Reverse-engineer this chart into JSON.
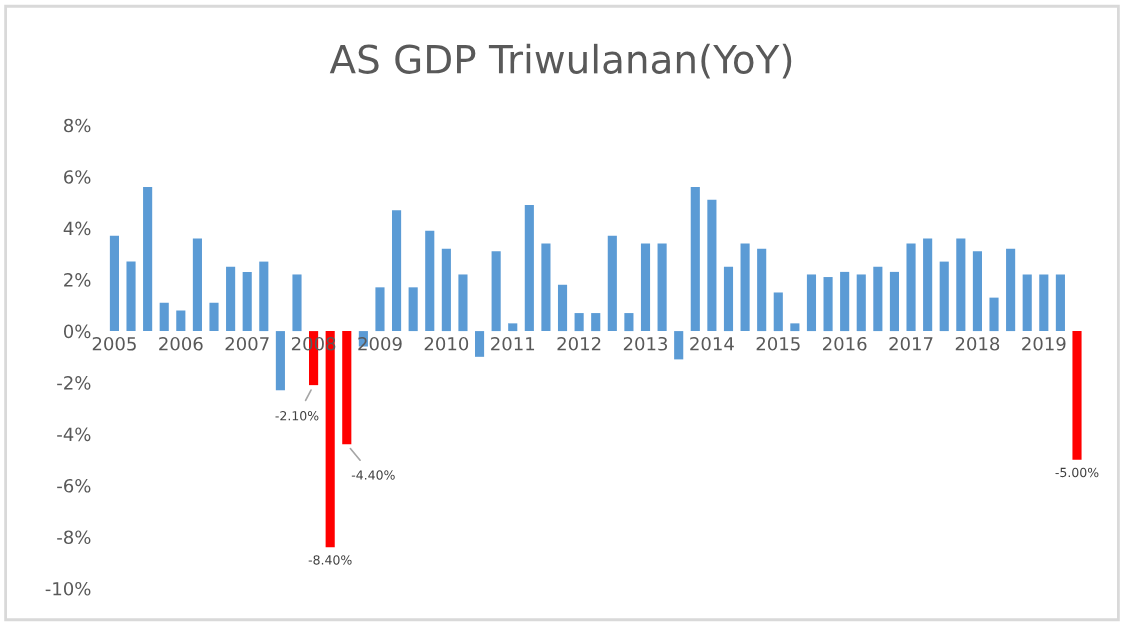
{
  "chart_data": {
    "type": "bar",
    "title": "AS GDP Triwulanan(YoY)",
    "categories": [
      "2005",
      null,
      null,
      null,
      "2006",
      null,
      null,
      null,
      "2007",
      null,
      null,
      null,
      "2008",
      null,
      null,
      null,
      "2009",
      null,
      null,
      null,
      "2010",
      null,
      null,
      null,
      "2011",
      null,
      null,
      null,
      "2012",
      null,
      null,
      null,
      "2013",
      null,
      null,
      null,
      "2014",
      null,
      null,
      null,
      "2015",
      null,
      null,
      null,
      "2016",
      null,
      null,
      null,
      "2017",
      null,
      null,
      null,
      "2018",
      null,
      null,
      null,
      "2019",
      null,
      null
    ],
    "values": [
      3.7,
      2.7,
      5.6,
      1.1,
      0.8,
      3.6,
      1.1,
      2.5,
      2.3,
      2.7,
      -2.3,
      2.2,
      -2.1,
      -8.4,
      -4.4,
      -0.6,
      1.7,
      4.7,
      1.7,
      3.9,
      3.2,
      2.2,
      -1.0,
      3.1,
      0.3,
      4.9,
      3.4,
      1.8,
      0.7,
      0.7,
      3.7,
      0.7,
      3.4,
      3.4,
      -1.1,
      5.6,
      5.1,
      2.5,
      3.4,
      3.2,
      1.5,
      0.3,
      2.2,
      2.1,
      2.3,
      2.2,
      2.5,
      2.3,
      3.4,
      3.6,
      2.7,
      3.6,
      3.1,
      1.3,
      3.2,
      2.2,
      2.2,
      2.2,
      -5.0
    ],
    "colors": [
      "#5b9bd5",
      "#5b9bd5",
      "#5b9bd5",
      "#5b9bd5",
      "#5b9bd5",
      "#5b9bd5",
      "#5b9bd5",
      "#5b9bd5",
      "#5b9bd5",
      "#5b9bd5",
      "#5b9bd5",
      "#5b9bd5",
      "#ff0000",
      "#ff0000",
      "#ff0000",
      "#5b9bd5",
      "#5b9bd5",
      "#5b9bd5",
      "#5b9bd5",
      "#5b9bd5",
      "#5b9bd5",
      "#5b9bd5",
      "#5b9bd5",
      "#5b9bd5",
      "#5b9bd5",
      "#5b9bd5",
      "#5b9bd5",
      "#5b9bd5",
      "#5b9bd5",
      "#5b9bd5",
      "#5b9bd5",
      "#5b9bd5",
      "#5b9bd5",
      "#5b9bd5",
      "#5b9bd5",
      "#5b9bd5",
      "#5b9bd5",
      "#5b9bd5",
      "#5b9bd5",
      "#5b9bd5",
      "#5b9bd5",
      "#5b9bd5",
      "#5b9bd5",
      "#5b9bd5",
      "#5b9bd5",
      "#5b9bd5",
      "#5b9bd5",
      "#5b9bd5",
      "#5b9bd5",
      "#5b9bd5",
      "#5b9bd5",
      "#5b9bd5",
      "#5b9bd5",
      "#5b9bd5",
      "#5b9bd5",
      "#5b9bd5",
      "#5b9bd5",
      "#5b9bd5",
      "#ff0000"
    ],
    "value_labels": [
      null,
      null,
      null,
      null,
      null,
      null,
      null,
      null,
      null,
      null,
      null,
      null,
      "-2.10%",
      "-8.40%",
      "-4.40%",
      null,
      null,
      null,
      null,
      null,
      null,
      null,
      null,
      null,
      null,
      null,
      null,
      null,
      null,
      null,
      null,
      null,
      null,
      null,
      null,
      null,
      null,
      null,
      null,
      null,
      null,
      null,
      null,
      null,
      null,
      null,
      null,
      null,
      null,
      null,
      null,
      null,
      null,
      null,
      null,
      null,
      null,
      null,
      "-5.00%"
    ],
    "ylim": [
      -10,
      8
    ],
    "yticks": [
      {
        "value": -10,
        "label": "-10%"
      },
      {
        "value": -8,
        "label": "-8%"
      },
      {
        "value": -6,
        "label": "-6%"
      },
      {
        "value": -4,
        "label": "-4%"
      },
      {
        "value": -2,
        "label": "-2%"
      },
      {
        "value": 0,
        "label": "0%"
      },
      {
        "value": 2,
        "label": "2%"
      },
      {
        "value": 4,
        "label": "4%"
      },
      {
        "value": 6,
        "label": "6%"
      },
      {
        "value": 8,
        "label": "8%"
      }
    ],
    "grid": false,
    "legend": false
  }
}
